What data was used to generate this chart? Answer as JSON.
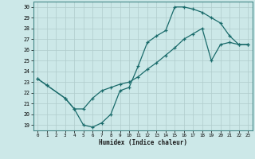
{
  "xlabel": "Humidex (Indice chaleur)",
  "bg_color": "#cce8e8",
  "line_color": "#1a6b6b",
  "grid_color": "#b0cccc",
  "xlim": [
    -0.5,
    23.5
  ],
  "ylim": [
    18.5,
    30.5
  ],
  "xticks": [
    0,
    1,
    2,
    3,
    4,
    5,
    6,
    7,
    8,
    9,
    10,
    11,
    12,
    13,
    14,
    15,
    16,
    17,
    18,
    19,
    20,
    21,
    22,
    23
  ],
  "yticks": [
    19,
    20,
    21,
    22,
    23,
    24,
    25,
    26,
    27,
    28,
    29,
    30
  ],
  "line1_x": [
    0,
    1,
    3,
    4,
    5,
    6,
    7,
    8,
    9,
    10,
    11,
    12,
    13,
    14,
    15,
    16,
    17,
    18,
    19,
    20,
    21,
    22,
    23
  ],
  "line1_y": [
    23.3,
    22.7,
    21.5,
    20.5,
    20.5,
    21.5,
    22.2,
    22.5,
    22.8,
    23.0,
    23.5,
    24.2,
    24.8,
    25.5,
    26.2,
    27.0,
    27.5,
    28.0,
    25.0,
    26.5,
    26.7,
    26.5,
    26.5
  ],
  "line2_x": [
    0,
    1,
    3,
    4,
    5,
    6,
    7,
    8,
    9,
    10,
    11,
    12,
    13,
    14,
    15,
    16,
    17,
    18,
    19,
    20,
    21,
    22,
    23
  ],
  "line2_y": [
    23.3,
    22.7,
    21.5,
    20.5,
    19.0,
    18.8,
    19.2,
    20.0,
    22.2,
    22.5,
    24.5,
    26.7,
    27.3,
    27.8,
    30.0,
    30.0,
    29.8,
    29.5,
    29.0,
    28.5,
    27.3,
    26.5,
    26.5
  ]
}
